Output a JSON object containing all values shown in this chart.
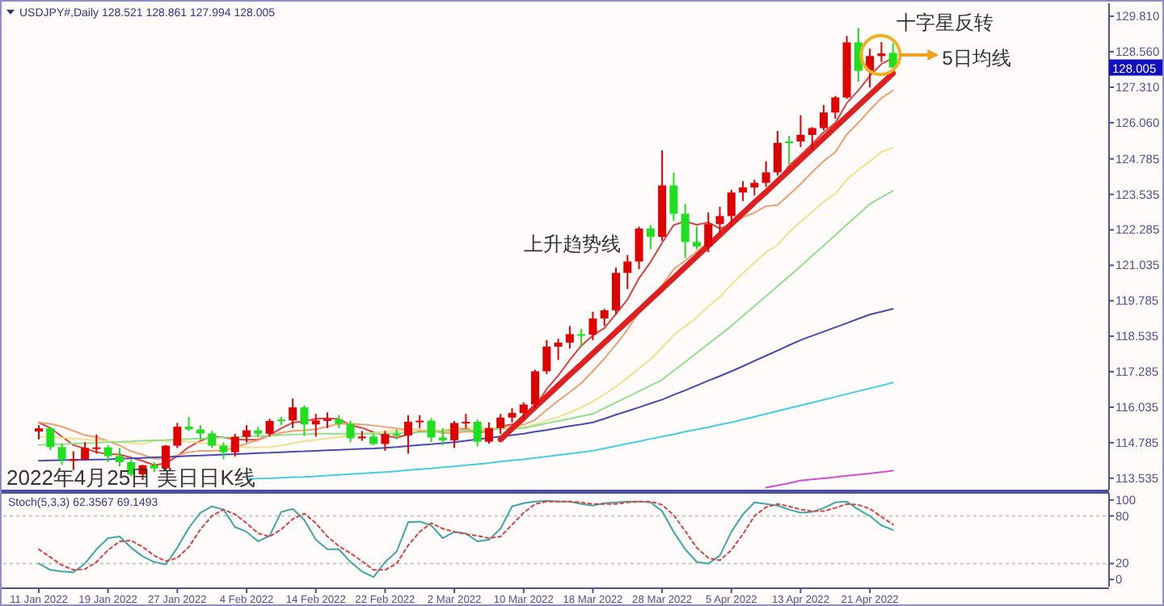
{
  "chart_data": [
    {
      "type": "candlestick",
      "categories": [
        null,
        null,
        null,
        null,
        null,
        null,
        null,
        null,
        null,
        null,
        null,
        null,
        null,
        null,
        null,
        null,
        null,
        null,
        null,
        null,
        null,
        null,
        null,
        null,
        null,
        null,
        null,
        null,
        null,
        null,
        null,
        null,
        null,
        null,
        null,
        null,
        null,
        null,
        null,
        null,
        null,
        null,
        null,
        null,
        null,
        null,
        null,
        null,
        null,
        null,
        null,
        null,
        null,
        null,
        null,
        null,
        null,
        null,
        null,
        null,
        null,
        null,
        null,
        null,
        null,
        null,
        null,
        null,
        null,
        null,
        null,
        null,
        null,
        null,
        null
      ],
      "ohlc": [
        [
          115.18,
          115.4,
          114.9,
          115.29
        ],
        [
          115.29,
          115.35,
          114.53,
          114.63
        ],
        [
          114.63,
          114.75,
          114.0,
          114.19
        ],
        [
          114.19,
          114.48,
          113.82,
          114.2
        ],
        [
          114.2,
          114.8,
          114.15,
          114.6
        ],
        [
          114.6,
          115.07,
          114.4,
          114.62
        ],
        [
          114.62,
          114.7,
          114.1,
          114.31
        ],
        [
          114.31,
          114.6,
          113.95,
          114.1
        ],
        [
          114.1,
          114.2,
          113.6,
          113.67
        ],
        [
          113.67,
          114.0,
          113.47,
          113.99
        ],
        [
          113.99,
          114.1,
          113.75,
          113.88
        ],
        [
          113.88,
          114.7,
          113.8,
          114.68
        ],
        [
          114.68,
          115.48,
          114.6,
          115.35
        ],
        [
          115.35,
          115.69,
          115.2,
          115.25
        ],
        [
          115.25,
          115.4,
          114.9,
          115.11
        ],
        [
          115.11,
          115.2,
          114.6,
          114.68
        ],
        [
          114.68,
          114.8,
          114.2,
          114.45
        ],
        [
          114.45,
          115.1,
          114.3,
          114.99
        ],
        [
          114.99,
          115.4,
          114.8,
          115.22
        ],
        [
          115.22,
          115.35,
          114.98,
          115.1
        ],
        [
          115.1,
          115.63,
          115.0,
          115.55
        ],
        [
          115.6,
          115.7,
          115.4,
          115.57
        ],
        [
          115.57,
          116.34,
          115.3,
          116.03
        ],
        [
          116.03,
          116.1,
          115.02,
          115.43
        ],
        [
          115.43,
          115.8,
          115.0,
          115.57
        ],
        [
          115.57,
          115.85,
          115.3,
          115.61
        ],
        [
          115.61,
          115.75,
          115.3,
          115.45
        ],
        [
          115.45,
          115.55,
          114.8,
          114.94
        ],
        [
          114.94,
          115.2,
          114.85,
          115.0
        ],
        [
          115.0,
          115.1,
          114.7,
          114.74
        ],
        [
          114.74,
          115.2,
          114.5,
          115.09
        ],
        [
          115.09,
          115.25,
          114.9,
          115.04
        ],
        [
          115.04,
          115.75,
          114.4,
          115.52
        ],
        [
          115.52,
          115.75,
          115.3,
          115.56
        ],
        [
          115.56,
          115.65,
          114.8,
          114.97
        ],
        [
          114.97,
          115.3,
          114.7,
          114.87
        ],
        [
          114.87,
          115.55,
          114.6,
          115.48
        ],
        [
          115.48,
          115.8,
          115.3,
          115.52
        ],
        [
          115.52,
          115.6,
          114.65,
          114.82
        ],
        [
          114.82,
          115.5,
          114.75,
          115.3
        ],
        [
          115.3,
          115.8,
          115.1,
          115.67
        ],
        [
          115.67,
          116.0,
          115.5,
          115.83
        ],
        [
          115.83,
          116.2,
          115.6,
          116.13
        ],
        [
          116.13,
          117.35,
          116.0,
          117.3
        ],
        [
          117.3,
          118.4,
          117.2,
          118.17
        ],
        [
          118.17,
          118.45,
          117.7,
          118.31
        ],
        [
          118.31,
          118.9,
          118.1,
          118.61
        ],
        [
          118.61,
          118.8,
          118.2,
          118.59
        ],
        [
          118.59,
          119.4,
          118.4,
          119.16
        ],
        [
          119.16,
          119.5,
          118.9,
          119.45
        ],
        [
          119.45,
          120.95,
          119.3,
          120.77
        ],
        [
          120.77,
          121.4,
          120.2,
          121.17
        ],
        [
          121.17,
          122.4,
          120.9,
          122.33
        ],
        [
          122.33,
          122.45,
          121.6,
          122.04
        ],
        [
          122.04,
          125.09,
          121.9,
          123.85
        ],
        [
          123.85,
          124.3,
          122.6,
          122.85
        ],
        [
          122.85,
          123.2,
          121.3,
          121.86
        ],
        [
          121.86,
          122.4,
          121.6,
          121.7
        ],
        [
          121.7,
          122.9,
          121.5,
          122.49
        ],
        [
          122.49,
          123.1,
          122.2,
          122.77
        ],
        [
          122.77,
          123.7,
          122.4,
          123.6
        ],
        [
          123.6,
          124.0,
          123.3,
          123.78
        ],
        [
          123.78,
          124.05,
          123.5,
          123.94
        ],
        [
          123.94,
          124.7,
          123.8,
          124.31
        ],
        [
          124.31,
          125.77,
          124.2,
          125.35
        ],
        [
          125.4,
          125.6,
          124.6,
          125.38
        ],
        [
          125.4,
          126.32,
          125.2,
          125.63
        ],
        [
          125.63,
          125.9,
          125.1,
          125.87
        ],
        [
          125.87,
          126.68,
          125.8,
          126.42
        ],
        [
          126.42,
          127.0,
          126.2,
          126.95
        ],
        [
          126.95,
          129.12,
          126.9,
          128.89
        ],
        [
          128.89,
          129.4,
          127.5,
          127.89
        ],
        [
          127.89,
          128.67,
          127.3,
          128.41
        ],
        [
          128.41,
          128.9,
          128.2,
          128.5
        ],
        [
          128.521,
          128.861,
          127.994,
          128.005
        ]
      ],
      "colors": [
        "#e00000",
        "#1ee01e",
        "#1ee01e",
        "#e00000",
        "#e00000",
        "#e00000",
        "#1ee01e",
        "#1ee01e",
        "#1ee01e",
        "#e00000",
        "#1ee01e",
        "#e00000",
        "#e00000",
        "#1ee01e",
        "#1ee01e",
        "#1ee01e",
        "#1ee01e",
        "#e00000",
        "#e00000",
        "#1ee01e",
        "#e00000",
        "#1ee01e",
        "#e00000",
        "#1ee01e",
        "#e00000",
        "#e00000",
        "#1ee01e",
        "#1ee01e",
        "#e00000",
        "#1ee01e",
        "#e00000",
        "#1ee01e",
        "#e00000",
        "#e00000",
        "#1ee01e",
        "#1ee01e",
        "#e00000",
        "#e00000",
        "#1ee01e",
        "#e00000",
        "#e00000",
        "#e00000",
        "#e00000",
        "#e00000",
        "#e00000",
        "#e00000",
        "#e00000",
        "#1ee01e",
        "#e00000",
        "#e00000",
        "#e00000",
        "#e00000",
        "#e00000",
        "#1ee01e",
        "#e00000",
        "#1ee01e",
        "#1ee01e",
        "#1ee01e",
        "#e00000",
        "#e00000",
        "#e00000",
        "#e00000",
        "#e00000",
        "#e00000",
        "#e00000",
        "#1ee01e",
        "#e00000",
        "#e00000",
        "#e00000",
        "#e00000",
        "#e00000",
        "#1ee01e",
        "#e00000",
        "#e00000",
        "#1ee01e"
      ],
      "series": [
        {
          "type": "line",
          "color": "#e04040",
          "values": [
            115.5,
            115.3,
            115.0,
            114.7,
            114.58,
            114.45,
            114.38,
            114.37,
            114.26,
            114.14,
            113.99,
            114.06,
            114.31,
            114.63,
            114.85,
            115.01,
            114.97,
            114.9,
            114.89,
            114.89,
            115.06,
            115.29,
            115.49,
            115.54,
            115.63,
            115.64,
            115.62,
            115.4,
            115.31,
            115.15,
            115.04,
            114.96,
            115.08,
            115.19,
            115.24,
            115.19,
            115.28,
            115.28,
            115.13,
            115.2,
            115.36,
            115.43,
            115.55,
            116.05,
            116.68,
            117.15,
            117.7,
            118.2,
            118.57,
            118.82,
            119.32,
            119.83,
            120.58,
            121.15,
            121.83,
            122.45,
            122.59,
            122.46,
            122.55,
            122.33,
            122.48,
            122.87,
            123.32,
            123.68,
            123.99,
            124.55,
            124.92,
            125.31,
            125.73,
            126.05,
            126.75,
            127.2,
            127.71,
            128.13,
            128.34
          ]
        },
        {
          "type": "line",
          "color": "#f0a070",
          "values": [
            115.5,
            115.45,
            115.35,
            115.2,
            115.05,
            114.98,
            114.84,
            114.69,
            114.48,
            114.36,
            114.22,
            114.22,
            114.34,
            114.45,
            114.5,
            114.5,
            114.52,
            114.61,
            114.76,
            114.87,
            115.04,
            115.13,
            115.2,
            115.22,
            115.26,
            115.35,
            115.46,
            115.45,
            115.43,
            115.39,
            115.34,
            115.29,
            115.24,
            115.25,
            115.2,
            115.12,
            115.12,
            115.18,
            115.16,
            115.22,
            115.28,
            115.36,
            115.42,
            115.59,
            115.94,
            116.26,
            116.57,
            116.88,
            117.31,
            117.75,
            118.24,
            118.77,
            119.39,
            119.86,
            120.33,
            120.89,
            121.21,
            121.52,
            121.85,
            122.08,
            122.47,
            122.73,
            122.89,
            123.12,
            123.16,
            123.52,
            123.9,
            124.32,
            124.71,
            125.02,
            125.65,
            126.06,
            126.51,
            126.93,
            127.2
          ]
        },
        {
          "type": "line",
          "color": "#f5e08a",
          "values": [
            115.0,
            114.98,
            114.96,
            114.93,
            114.9,
            114.87,
            114.84,
            114.8,
            114.77,
            114.74,
            114.86,
            114.84,
            114.85,
            114.83,
            114.78,
            114.74,
            114.68,
            114.65,
            114.62,
            114.62,
            114.63,
            114.68,
            114.77,
            114.84,
            114.88,
            114.93,
            114.99,
            115.03,
            115.1,
            115.13,
            115.19,
            115.21,
            115.22,
            115.24,
            115.23,
            115.24,
            115.29,
            115.32,
            115.3,
            115.31,
            115.31,
            115.33,
            115.33,
            115.42,
            115.57,
            115.69,
            115.85,
            116.03,
            116.24,
            116.49,
            116.76,
            117.07,
            117.41,
            117.73,
            118.14,
            118.58,
            118.89,
            119.2,
            119.58,
            119.92,
            120.36,
            120.75,
            121.14,
            121.49,
            121.75,
            122.21,
            122.56,
            122.92,
            123.28,
            123.55,
            124.06,
            124.4,
            124.7,
            125.03,
            125.18
          ]
        },
        {
          "type": "line",
          "color": "#90e090",
          "values": [
            114.7,
            114.72,
            114.73,
            114.75,
            114.77,
            114.78,
            114.8,
            114.82,
            114.83,
            114.85,
            114.87,
            114.88,
            114.9,
            114.92,
            114.93,
            114.95,
            114.97,
            114.98,
            115.0,
            115.02,
            115.03,
            115.05,
            115.07,
            115.08,
            115.1,
            115.1,
            115.1,
            115.1,
            115.1,
            115.1,
            115.1,
            115.12,
            115.13,
            115.15,
            115.17,
            115.18,
            115.2,
            115.22,
            115.23,
            115.25,
            115.27,
            115.28,
            115.3,
            115.38,
            115.47,
            115.55,
            115.63,
            115.72,
            115.8,
            116.0,
            116.2,
            116.4,
            116.6,
            116.8,
            117.0,
            117.32,
            117.63,
            117.95,
            118.27,
            118.58,
            118.9,
            119.25,
            119.6,
            119.95,
            120.3,
            120.65,
            121.0,
            121.37,
            121.73,
            122.1,
            122.47,
            122.83,
            123.2,
            123.43,
            123.66
          ]
        },
        {
          "type": "line",
          "color": "#4848b8",
          "values": [
            114.15,
            114.16,
            114.17,
            114.18,
            114.18,
            114.19,
            114.2,
            114.22,
            114.23,
            114.25,
            114.27,
            114.28,
            114.3,
            114.32,
            114.33,
            114.35,
            114.37,
            114.38,
            114.4,
            114.42,
            114.43,
            114.45,
            114.47,
            114.48,
            114.5,
            114.52,
            114.53,
            114.55,
            114.57,
            114.58,
            114.6,
            114.63,
            114.67,
            114.7,
            114.73,
            114.77,
            114.8,
            114.85,
            114.9,
            114.95,
            115.0,
            115.05,
            115.1,
            115.17,
            115.23,
            115.3,
            115.37,
            115.43,
            115.5,
            115.63,
            115.77,
            115.9,
            116.03,
            116.17,
            116.3,
            116.47,
            116.63,
            116.8,
            116.97,
            117.13,
            117.3,
            117.48,
            117.67,
            117.85,
            118.03,
            118.22,
            118.4,
            118.55,
            118.7,
            118.85,
            119.0,
            119.15,
            119.3,
            119.4,
            119.5
          ]
        },
        {
          "type": "line",
          "color": "#40d0e0",
          "values": [
            null,
            null,
            null,
            null,
            null,
            null,
            null,
            null,
            null,
            null,
            null,
            null,
            null,
            null,
            null,
            null,
            null,
            null,
            113.5,
            113.52,
            113.53,
            113.55,
            113.57,
            113.58,
            113.6,
            113.63,
            113.65,
            113.68,
            113.7,
            113.73,
            113.75,
            113.78,
            113.82,
            113.85,
            113.88,
            113.92,
            113.95,
            113.99,
            114.03,
            114.07,
            114.12,
            114.16,
            114.2,
            114.25,
            114.3,
            114.35,
            114.4,
            114.45,
            114.5,
            114.58,
            114.67,
            114.75,
            114.83,
            114.92,
            115.0,
            115.08,
            115.17,
            115.25,
            115.33,
            115.42,
            115.5,
            115.6,
            115.7,
            115.8,
            115.9,
            116.0,
            116.1,
            116.2,
            116.3,
            116.4,
            116.5,
            116.6,
            116.7,
            116.8,
            116.9
          ]
        },
        {
          "type": "line",
          "color": "#d050d0",
          "values": [
            null,
            null,
            null,
            null,
            null,
            null,
            null,
            null,
            null,
            null,
            null,
            null,
            null,
            null,
            null,
            null,
            null,
            null,
            null,
            null,
            null,
            null,
            null,
            null,
            null,
            null,
            null,
            null,
            null,
            null,
            null,
            null,
            null,
            null,
            null,
            null,
            null,
            null,
            null,
            null,
            null,
            null,
            null,
            null,
            null,
            null,
            null,
            null,
            null,
            null,
            null,
            null,
            null,
            null,
            null,
            null,
            null,
            null,
            null,
            null,
            null,
            null,
            null,
            113.2,
            113.28,
            113.36,
            113.45,
            113.49,
            113.53,
            113.57,
            113.62,
            113.66,
            113.7,
            113.75,
            113.8
          ]
        },
        {
          "type": "line",
          "color": "#e02020",
          "values": [
            null,
            null,
            null,
            null,
            null,
            null,
            null,
            null,
            null,
            null,
            null,
            null,
            null,
            null,
            null,
            null,
            null,
            null,
            null,
            null,
            null,
            null,
            null,
            null,
            null,
            null,
            null,
            null,
            null,
            null,
            null,
            null,
            null,
            null,
            null,
            null,
            null,
            null,
            null,
            null,
            114.9,
            115.28,
            115.66,
            116.04,
            116.42,
            116.8,
            117.18,
            117.55,
            117.93,
            118.31,
            118.69,
            119.07,
            119.45,
            119.83,
            120.21,
            120.59,
            120.97,
            121.35,
            121.73,
            122.11,
            122.49,
            122.87,
            123.25,
            123.62,
            124.0,
            124.38,
            124.76,
            125.14,
            125.52,
            125.9,
            126.28,
            126.66,
            127.04,
            127.42,
            127.8
          ]
        }
      ],
      "ylim": [
        113.13,
        130.27
      ],
      "yticks": [
        {
          "value": 129.81,
          "label": "129.810"
        },
        {
          "value": 128.56,
          "label": "128.560"
        },
        {
          "value": 127.31,
          "label": "127.310"
        },
        {
          "value": 126.06,
          "label": "126.060"
        },
        {
          "value": 124.785,
          "label": "124.785"
        },
        {
          "value": 123.535,
          "label": "123.535"
        },
        {
          "value": 122.285,
          "label": "122.285"
        },
        {
          "value": 121.035,
          "label": "121.035"
        },
        {
          "value": 119.785,
          "label": "119.785"
        },
        {
          "value": 118.535,
          "label": "118.535"
        },
        {
          "value": 117.285,
          "label": "117.285"
        },
        {
          "value": 116.035,
          "label": "116.035"
        },
        {
          "value": 114.785,
          "label": "114.785"
        },
        {
          "value": 113.535,
          "label": "113.535"
        }
      ],
      "annotations": [
        "USDJPY#,Daily 128.521 128.861 127.994 128.005",
        "2022年4月25日 美日日K线",
        "十字星反转",
        "5日均线",
        "上升趋势线",
        "128.005"
      ]
    },
    {
      "type": "line",
      "categories": [
        "11 Jan 2022",
        null,
        null,
        null,
        null,
        null,
        "19 Jan 2022",
        null,
        null,
        null,
        null,
        null,
        "27 Jan 2022",
        null,
        null,
        null,
        null,
        null,
        "4 Feb 2022",
        null,
        null,
        null,
        null,
        null,
        "14 Feb 2022",
        null,
        null,
        null,
        null,
        null,
        "22 Feb 2022",
        null,
        null,
        null,
        null,
        null,
        "2 Mar 2022",
        null,
        null,
        null,
        null,
        null,
        "10 Mar 2022",
        null,
        null,
        null,
        null,
        null,
        "18 Mar 2022",
        null,
        null,
        null,
        null,
        null,
        "28 Mar 2022",
        null,
        null,
        null,
        null,
        null,
        "5 Apr 2022",
        null,
        null,
        null,
        null,
        null,
        "13 Apr 2022",
        null,
        null,
        null,
        null,
        null,
        "21 Apr 2022",
        null,
        null
      ],
      "series": [
        {
          "color": "#3fa7a7",
          "line_style": "solid",
          "values": [
            20,
            12,
            10,
            9,
            20,
            38,
            52,
            54,
            40,
            29,
            22,
            19,
            40,
            65,
            84,
            92,
            88,
            66,
            60,
            48,
            55,
            85,
            89,
            75,
            50,
            38,
            38,
            22,
            10,
            3,
            22,
            35,
            72,
            73,
            68,
            52,
            60,
            58,
            48,
            50,
            64,
            92,
            96,
            98,
            99,
            98,
            98,
            95,
            93,
            96,
            97,
            98,
            98,
            97,
            86,
            60,
            38,
            22,
            20,
            30,
            60,
            82,
            97,
            95,
            93,
            88,
            84,
            85,
            90,
            97,
            98,
            88,
            80,
            68,
            62.3567
          ]
        },
        {
          "color": "#e04040",
          "line_style": "dotted",
          "values": [
            38,
            28,
            18,
            12,
            13,
            22,
            37,
            48,
            49,
            41,
            30,
            23,
            27,
            41,
            63,
            80,
            88,
            82,
            71,
            58,
            54,
            63,
            76,
            83,
            71,
            54,
            42,
            33,
            23,
            12,
            12,
            20,
            43,
            60,
            71,
            64,
            60,
            57,
            55,
            52,
            54,
            69,
            84,
            95,
            98,
            98,
            98,
            97,
            95,
            95,
            95,
            97,
            98,
            98,
            94,
            81,
            61,
            40,
            27,
            24,
            37,
            57,
            80,
            91,
            95,
            92,
            88,
            86,
            86,
            90,
            95,
            94,
            89,
            79,
            69.1493
          ]
        }
      ],
      "ylim": [
        -9,
        109
      ],
      "yticks": [
        0,
        20,
        80,
        100
      ],
      "ref_lines": [
        {
          "axis": "y",
          "value": 20,
          "color": "#c8c8c8",
          "line_style": "dotted"
        },
        {
          "axis": "y",
          "value": 80,
          "color": "#c8c8c8",
          "line_style": "dotted"
        }
      ],
      "annotations": [
        "Stoch(5,3,3) 62.3567 69.1493"
      ]
    }
  ]
}
